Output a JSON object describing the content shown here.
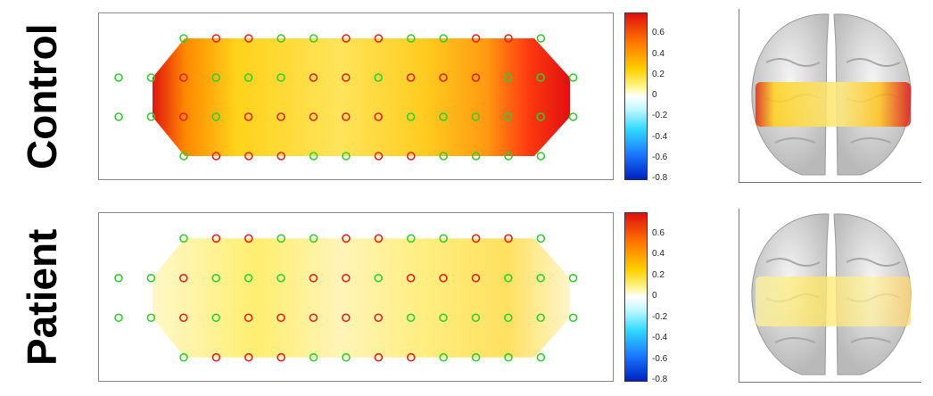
{
  "rows": [
    {
      "label": "Control",
      "heatmap_theme": "strong",
      "electrode_rows": [
        [
          "green",
          "red",
          "red",
          "green",
          "green",
          "red",
          "red",
          "green",
          "green",
          "red",
          "red",
          "green"
        ],
        [
          "green",
          "green",
          "red",
          "green",
          "green",
          "green",
          "red",
          "red",
          "green",
          "red",
          "red",
          "red",
          "green",
          "green",
          "green"
        ],
        [
          "green",
          "green",
          "red",
          "green",
          "red",
          "red",
          "red",
          "red",
          "red",
          "green",
          "green",
          "green",
          "green",
          "green",
          "green"
        ],
        [
          "green",
          "red",
          "red",
          "red",
          "green",
          "green",
          "red",
          "red",
          "green",
          "green",
          "green",
          "green"
        ]
      ]
    },
    {
      "label": "Patient",
      "heatmap_theme": "weak",
      "electrode_rows": [
        [
          "green",
          "red",
          "red",
          "green",
          "green",
          "red",
          "red",
          "green",
          "green",
          "red",
          "red",
          "green"
        ],
        [
          "green",
          "green",
          "red",
          "green",
          "green",
          "green",
          "red",
          "red",
          "green",
          "red",
          "red",
          "red",
          "green",
          "green",
          "green"
        ],
        [
          "green",
          "green",
          "red",
          "green",
          "red",
          "red",
          "red",
          "red",
          "red",
          "green",
          "green",
          "green",
          "green",
          "green",
          "green"
        ],
        [
          "green",
          "red",
          "red",
          "red",
          "green",
          "green",
          "red",
          "red",
          "green",
          "green",
          "green",
          "green"
        ]
      ]
    }
  ],
  "colorbar": {
    "ticks": [
      "0.6",
      "0.4",
      "0.2",
      "0",
      "-0.2",
      "-0.4",
      "-0.6",
      "-0.8"
    ],
    "min": -0.8,
    "max": 0.8
  },
  "colors": {
    "electrode_green": "#33cc33",
    "electrode_red": "#dd2222",
    "panel_border": "#8a8a8a"
  }
}
